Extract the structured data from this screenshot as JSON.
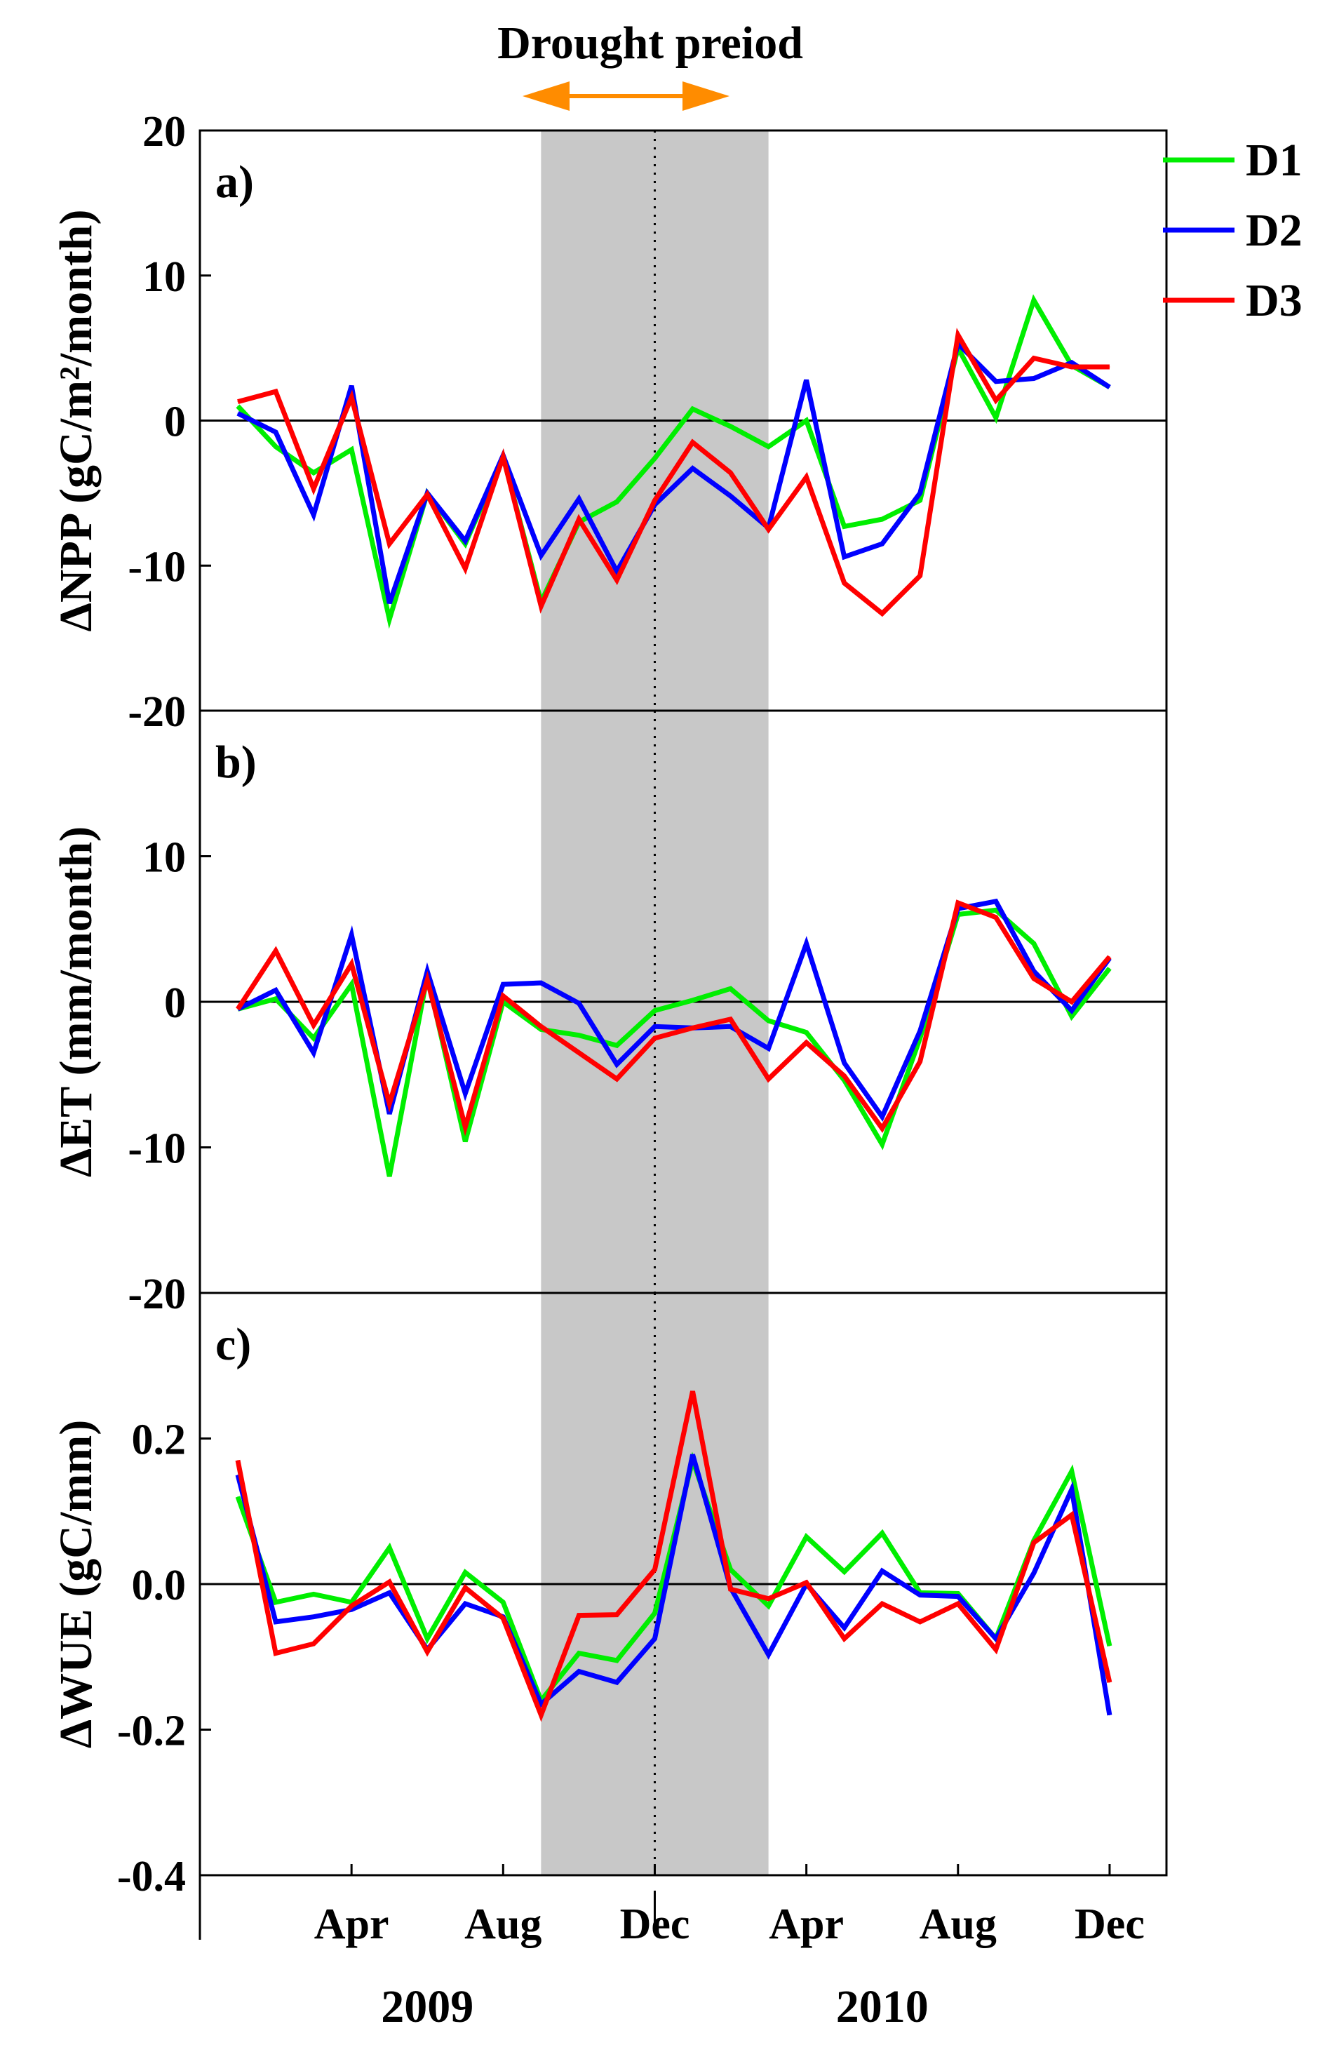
{
  "figure": {
    "drought_label": "Drought preiod",
    "legend_colors": {
      "D1": "#00ee00",
      "D2": "#0000ff",
      "D3": "#ff0000"
    },
    "arrow_color": "#ff8c00",
    "shade_color": "#c8c8c8"
  },
  "chart_data": [
    {
      "type": "line",
      "panel": "a)",
      "ylabel": "ΔNPP (gC/m²/month)",
      "ylim": [
        -20,
        20
      ],
      "yticks": [
        "20",
        "10",
        "0",
        "-10",
        "-20"
      ],
      "x": [
        1,
        2,
        3,
        4,
        5,
        6,
        7,
        8,
        9,
        10,
        11,
        12,
        13,
        14,
        15,
        16,
        17,
        18,
        19,
        20,
        21,
        22,
        23,
        24
      ],
      "shaded_range": [
        9,
        15
      ],
      "series": [
        {
          "name": "D1",
          "values": [
            1.0,
            -1.8,
            -3.6,
            -2.0,
            -13.7,
            -5.0,
            -8.5,
            -2.5,
            -12.5,
            -7.0,
            -5.6,
            -2.6,
            0.8,
            -0.4,
            -1.8,
            0.0,
            -7.3,
            -6.8,
            -5.5,
            5.0,
            0.2,
            8.3,
            3.8,
            2.3
          ]
        },
        {
          "name": "D2",
          "values": [
            0.5,
            -0.8,
            -6.5,
            2.4,
            -12.6,
            -5.0,
            -8.3,
            -2.4,
            -9.3,
            -5.4,
            -10.4,
            -5.8,
            -3.3,
            -5.2,
            -7.4,
            2.8,
            -9.4,
            -8.5,
            -5.0,
            5.3,
            2.7,
            2.9,
            4.0,
            2.3
          ]
        },
        {
          "name": "D3",
          "values": [
            1.3,
            2.0,
            -4.7,
            1.6,
            -8.5,
            -5.1,
            -10.2,
            -2.5,
            -12.8,
            -6.8,
            -11.0,
            -5.5,
            -1.5,
            -3.6,
            -7.5,
            -3.9,
            -11.2,
            -13.3,
            -10.7,
            5.9,
            1.4,
            4.3,
            3.7,
            3.7
          ]
        }
      ]
    },
    {
      "type": "line",
      "panel": "b)",
      "ylabel": "ΔET (mm/month)",
      "ylim": [
        -20,
        20
      ],
      "yticks": [
        "10",
        "0",
        "-10",
        "-20"
      ],
      "x": [
        1,
        2,
        3,
        4,
        5,
        6,
        7,
        8,
        9,
        10,
        11,
        12,
        13,
        14,
        15,
        16,
        17,
        18,
        19,
        20,
        21,
        22,
        23,
        24
      ],
      "shaded_range": [
        9,
        15
      ],
      "series": [
        {
          "name": "D1",
          "values": [
            -0.5,
            0.2,
            -2.5,
            1.2,
            -12.0,
            1.8,
            -9.6,
            0.0,
            -1.9,
            -2.3,
            -3.0,
            -0.6,
            0.1,
            0.9,
            -1.3,
            -2.1,
            -5.4,
            -9.8,
            -2.5,
            6.0,
            6.3,
            4.0,
            -1.0,
            2.3
          ]
        },
        {
          "name": "D2",
          "values": [
            -0.5,
            0.8,
            -3.5,
            4.6,
            -7.7,
            2.1,
            -6.3,
            1.2,
            1.3,
            -0.1,
            -4.3,
            -1.7,
            -1.8,
            -1.7,
            -3.2,
            4.0,
            -4.2,
            -7.9,
            -2.0,
            6.4,
            6.9,
            2.1,
            -0.6,
            3.0
          ]
        },
        {
          "name": "D3",
          "values": [
            -0.5,
            3.5,
            -1.6,
            2.6,
            -7.0,
            1.5,
            -8.6,
            0.4,
            -1.7,
            -3.5,
            -5.3,
            -2.5,
            -1.8,
            -1.2,
            -5.3,
            -2.8,
            -5.1,
            -8.7,
            -4.1,
            6.8,
            5.8,
            1.6,
            0.0,
            3.1
          ]
        }
      ]
    },
    {
      "type": "line",
      "panel": "c)",
      "ylabel": "ΔWUE (gC/mm)",
      "ylim": [
        -0.4,
        0.4
      ],
      "yticks": [
        "0.2",
        "0.0",
        "-0.2",
        "-0.4"
      ],
      "x": [
        1,
        2,
        3,
        4,
        5,
        6,
        7,
        8,
        9,
        10,
        11,
        12,
        13,
        14,
        15,
        16,
        17,
        18,
        19,
        20,
        21,
        22,
        23,
        24
      ],
      "shaded_range": [
        9,
        15
      ],
      "series": [
        {
          "name": "D1",
          "values": [
            0.12,
            -0.025,
            -0.014,
            -0.025,
            0.05,
            -0.075,
            0.016,
            -0.025,
            -0.16,
            -0.095,
            -0.105,
            -0.04,
            0.17,
            0.02,
            -0.03,
            0.065,
            0.017,
            0.07,
            -0.012,
            -0.013,
            -0.075,
            0.06,
            0.155,
            -0.085
          ]
        },
        {
          "name": "D2",
          "values": [
            0.15,
            -0.052,
            -0.045,
            -0.035,
            -0.012,
            -0.09,
            -0.027,
            -0.045,
            -0.165,
            -0.12,
            -0.135,
            -0.075,
            0.178,
            -0.005,
            -0.097,
            0.0,
            -0.06,
            0.018,
            -0.015,
            -0.017,
            -0.075,
            0.015,
            0.13,
            -0.18
          ]
        },
        {
          "name": "D3",
          "values": [
            0.17,
            -0.095,
            -0.082,
            -0.03,
            0.003,
            -0.093,
            -0.005,
            -0.047,
            -0.18,
            -0.043,
            -0.042,
            0.02,
            0.265,
            -0.007,
            -0.02,
            0.002,
            -0.075,
            -0.027,
            -0.052,
            -0.027,
            -0.09,
            0.057,
            0.095,
            -0.135
          ]
        }
      ]
    }
  ],
  "x_axis": {
    "tick_labels": [
      {
        "x": 4,
        "label": "Apr"
      },
      {
        "x": 8,
        "label": "Aug"
      },
      {
        "x": 12,
        "label": "Dec"
      },
      {
        "x": 16,
        "label": "Apr"
      },
      {
        "x": 20,
        "label": "Aug"
      },
      {
        "x": 24,
        "label": "Dec"
      }
    ],
    "years": [
      {
        "x": 6,
        "label": "2009"
      },
      {
        "x": 18,
        "label": "2010"
      }
    ],
    "year_divider_x": 12,
    "xlim": [
      0,
      25.5
    ]
  }
}
